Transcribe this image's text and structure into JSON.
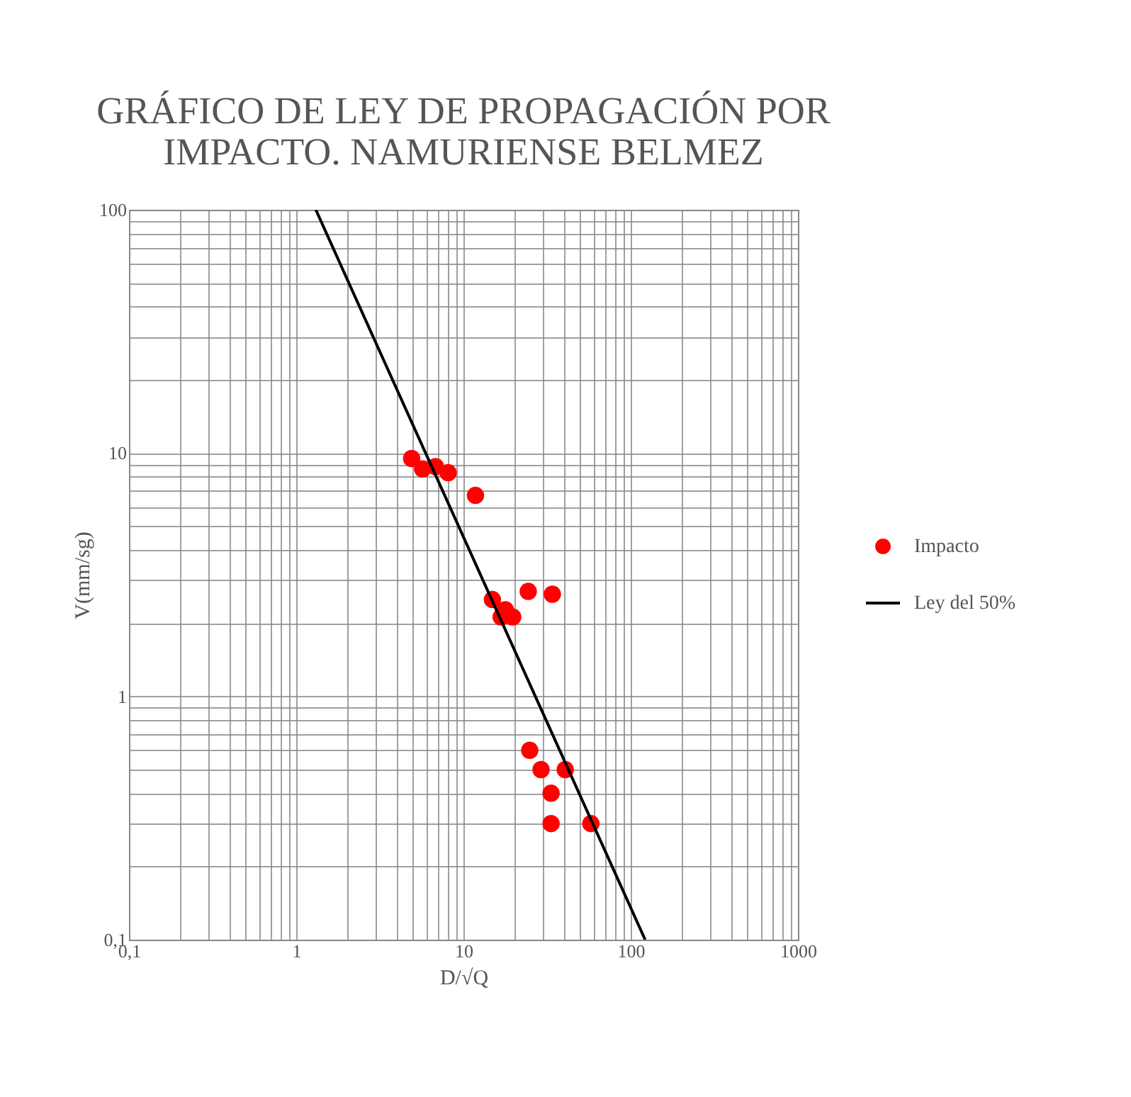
{
  "chart_data": {
    "type": "scatter",
    "title": [
      "GRÁFICO DE LEY DE PROPAGACIÓN  POR",
      "IMPACTO. NAMURIENSE  BELMEZ"
    ],
    "xlabel": "D/√Q",
    "ylabel": "V(mm/sg)",
    "log": "xy",
    "grid": true,
    "legend": "right",
    "xlim": [
      0.1,
      1000
    ],
    "ylim": [
      0.1,
      100
    ],
    "xticks": [
      {
        "value": 0.1,
        "label": "0,1"
      },
      {
        "value": 0.2,
        "label": null
      },
      {
        "value": 0.3,
        "label": null
      },
      {
        "value": 0.4,
        "label": null
      },
      {
        "value": 0.5,
        "label": null
      },
      {
        "value": 0.6,
        "label": null
      },
      {
        "value": 0.7,
        "label": null
      },
      {
        "value": 0.8,
        "label": null
      },
      {
        "value": 0.9,
        "label": null
      },
      1,
      {
        "value": 2,
        "label": null
      },
      {
        "value": 3,
        "label": null
      },
      {
        "value": 4,
        "label": null
      },
      {
        "value": 5,
        "label": null
      },
      {
        "value": 6,
        "label": null
      },
      {
        "value": 7,
        "label": null
      },
      {
        "value": 8,
        "label": null
      },
      {
        "value": 9,
        "label": null
      },
      10,
      {
        "value": 20,
        "label": null
      },
      {
        "value": 30,
        "label": null
      },
      {
        "value": 40,
        "label": null
      },
      {
        "value": 50,
        "label": null
      },
      {
        "value": 60,
        "label": null
      },
      {
        "value": 70,
        "label": null
      },
      {
        "value": 80,
        "label": null
      },
      {
        "value": 90,
        "label": null
      },
      100,
      {
        "value": 200,
        "label": null
      },
      {
        "value": 300,
        "label": null
      },
      {
        "value": 400,
        "label": null
      },
      {
        "value": 500,
        "label": null
      },
      {
        "value": 600,
        "label": null
      },
      {
        "value": 700,
        "label": null
      },
      {
        "value": 800,
        "label": null
      },
      {
        "value": 900,
        "label": null
      },
      1000
    ],
    "yticks": [
      {
        "value": 0.1,
        "label": "0,1"
      },
      {
        "value": 0.2,
        "label": null
      },
      {
        "value": 0.3,
        "label": null
      },
      {
        "value": 0.4,
        "label": null
      },
      {
        "value": 0.5,
        "label": null
      },
      {
        "value": 0.6,
        "label": null
      },
      {
        "value": 0.7,
        "label": null
      },
      {
        "value": 0.8,
        "label": null
      },
      {
        "value": 0.9,
        "label": null
      },
      1,
      {
        "value": 2,
        "label": null
      },
      {
        "value": 3,
        "label": null
      },
      {
        "value": 4,
        "label": null
      },
      {
        "value": 5,
        "label": null
      },
      {
        "value": 6,
        "label": null
      },
      {
        "value": 7,
        "label": null
      },
      {
        "value": 8,
        "label": null
      },
      {
        "value": 9,
        "label": null
      },
      10,
      {
        "value": 20,
        "label": null
      },
      {
        "value": 30,
        "label": null
      },
      {
        "value": 40,
        "label": null
      },
      {
        "value": 50,
        "label": null
      },
      {
        "value": 60,
        "label": null
      },
      {
        "value": 70,
        "label": null
      },
      {
        "value": 80,
        "label": null
      },
      {
        "value": 90,
        "label": null
      },
      100
    ],
    "series": [
      {
        "name": "Impacto",
        "marker": "circle",
        "color": "#ff0000",
        "x": [
          4.9,
          5.7,
          6.8,
          8.1,
          11.8,
          14.9,
          19.7,
          16.8,
          24.4,
          34,
          24.9,
          29.1,
          40.6,
          33.4,
          33.4,
          57.8,
          17.8
        ],
        "values": [
          9.5,
          8.6,
          8.8,
          8.3,
          6.7,
          2.5,
          2.12,
          2.12,
          2.7,
          2.63,
          0.6,
          0.5,
          0.5,
          0.4,
          0.3,
          0.3,
          2.27
        ]
      },
      {
        "name": "Ley del 50%",
        "type": "line",
        "color": "#000000",
        "x": [
          1.31,
          122
        ],
        "values": [
          100,
          0.1
        ]
      }
    ]
  }
}
